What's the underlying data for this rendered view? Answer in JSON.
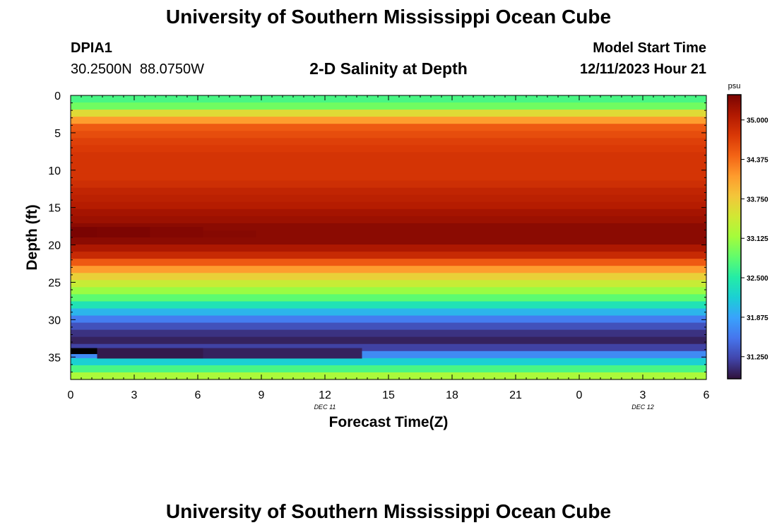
{
  "header": {
    "title": "University of Southern Mississippi Ocean Cube",
    "station_id": "DPIA1",
    "coordinates": "30.2500N  88.0750W",
    "chart_title": "2-D Salinity at Depth",
    "model_start_label": "Model Start Time",
    "model_start_value": "12/11/2023 Hour 21"
  },
  "footer": {
    "title": "University of Southern Mississippi Ocean Cube"
  },
  "chart_data": {
    "type": "heatmap",
    "title": "2-D Salinity at Depth",
    "xlabel": "Forecast Time(Z)",
    "ylabel": "Depth (ft)",
    "x_tick_labels": [
      "0",
      "3",
      "6",
      "9",
      "12",
      "15",
      "18",
      "21",
      "0",
      "3",
      "6"
    ],
    "date_labels": [
      {
        "text": "DEC 11",
        "at_tick": 4
      },
      {
        "text": "DEC 12",
        "at_tick": 9
      }
    ],
    "x_range_hours": [
      0,
      30
    ],
    "y_ticks": [
      0,
      5,
      10,
      15,
      20,
      25,
      30,
      35
    ],
    "y_range_ft": [
      0,
      38
    ],
    "y_reversed": true,
    "colorbar": {
      "unit": "psu",
      "ticks": [
        "35.000",
        "34.375",
        "33.750",
        "33.125",
        "32.500",
        "31.875",
        "31.250"
      ],
      "min": 30.9,
      "max": 35.4,
      "colors": [
        "#30123b",
        "#4145ab",
        "#4675ed",
        "#39a2fc",
        "#1bcfd4",
        "#24eca6",
        "#61fc6c",
        "#a4fc3b",
        "#d1e834",
        "#f3c63a",
        "#fe9b2d",
        "#f36315",
        "#d93806",
        "#b11901",
        "#7a0402"
      ]
    },
    "depth_profile_psu": [
      32.7,
      32.9,
      33.6,
      34.1,
      34.5,
      34.6,
      34.7,
      34.75,
      34.8,
      34.8,
      34.8,
      34.8,
      34.85,
      34.95,
      35.0,
      35.05,
      35.15,
      35.2,
      35.3,
      35.3,
      35.3,
      35.1,
      34.9,
      34.5,
      34.1,
      33.7,
      33.4,
      33.1,
      32.8,
      32.4,
      32.0,
      31.6,
      31.3,
      31.1,
      31.0,
      31.2,
      31.7,
      32.2,
      32.7,
      33.2
    ],
    "anomalies": [
      {
        "time_range_h": [
          0,
          1.25
        ],
        "depth_range_ft": [
          17.6,
          19.0
        ],
        "value_psu": 35.4
      },
      {
        "time_range_h": [
          1.25,
          3.75
        ],
        "depth_range_ft": [
          17.6,
          19.0
        ],
        "value_psu": 35.38
      },
      {
        "time_range_h": [
          3.75,
          6.25
        ],
        "depth_range_ft": [
          17.6,
          19.0
        ],
        "value_psu": 35.35
      },
      {
        "time_range_h": [
          6.25,
          8.75
        ],
        "depth_range_ft": [
          18.1,
          19.0
        ],
        "value_psu": 35.33
      },
      {
        "time_range_h": [
          0,
          1.25
        ],
        "depth_range_ft": [
          33.8,
          34.6
        ],
        "value_psu": 30.6
      },
      {
        "time_range_h": [
          1.25,
          6.25
        ],
        "depth_range_ft": [
          33.8,
          35.2
        ],
        "value_psu": 30.95
      },
      {
        "time_range_h": [
          6.25,
          13.75
        ],
        "depth_range_ft": [
          33.8,
          35.2
        ],
        "value_psu": 31.0
      }
    ]
  }
}
